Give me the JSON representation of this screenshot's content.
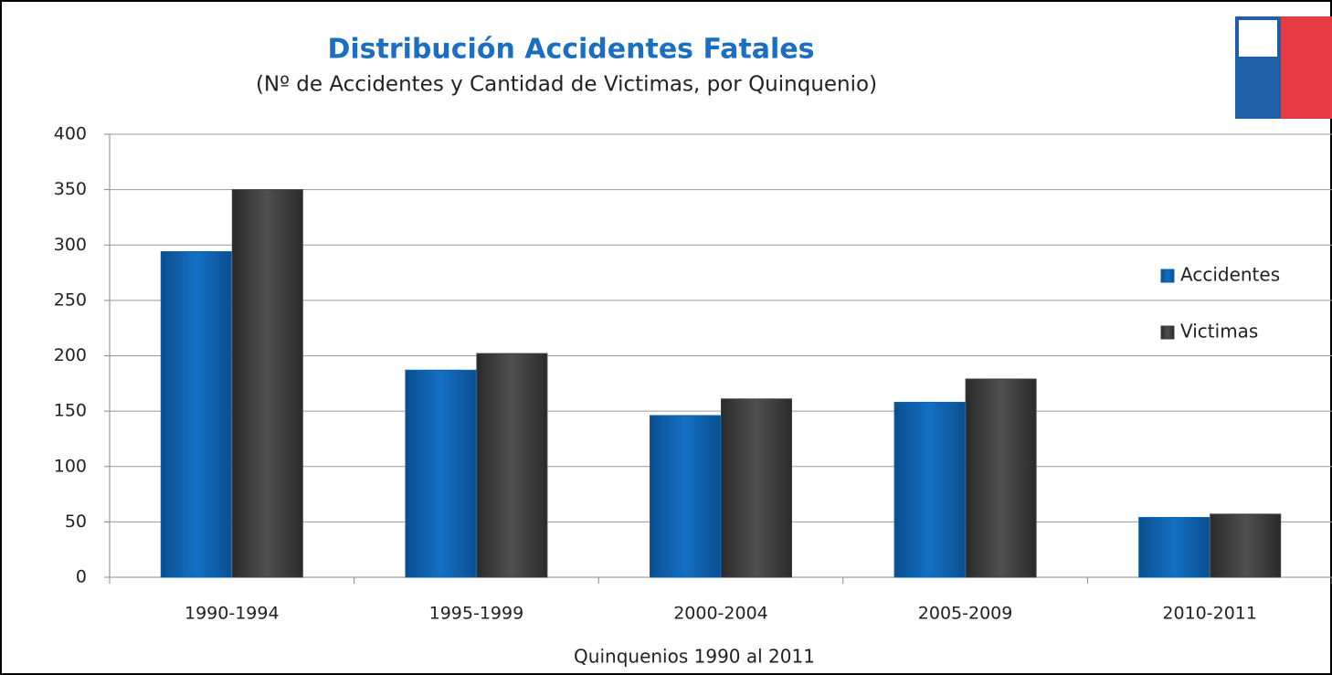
{
  "chart_data": {
    "type": "bar",
    "title": "Distribución Accidentes Fatales",
    "subtitle": "(Nº de Accidentes y Cantidad de Victimas, por Quinquenio)",
    "x_label": "Quinquenios 1990 al 2011",
    "categories": [
      "1990-1994",
      "1995-1999",
      "2000-2004",
      "2005-2009",
      "2010-2011"
    ],
    "series": [
      {
        "name": "Accidentes",
        "color": "#0a62ae",
        "values": [
          294,
          187,
          146,
          158,
          54
        ]
      },
      {
        "name": "Victimas",
        "color": "#3f3f3f",
        "values": [
          350,
          202,
          161,
          179,
          57
        ]
      }
    ],
    "ylim": [
      0,
      400
    ],
    "yticks": [
      0,
      50,
      100,
      150,
      200,
      250,
      300,
      350,
      400
    ],
    "grid": true,
    "legend": "right"
  }
}
